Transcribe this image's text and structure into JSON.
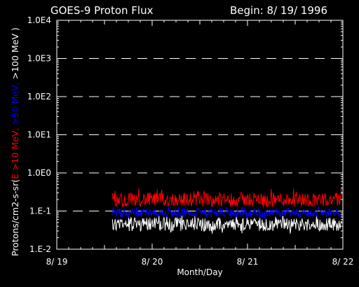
{
  "chart_data": {
    "type": "line",
    "title": "GOES-9 Proton Flux",
    "subtitle": "Begin: 8/ 19/ 1996",
    "xlabel": "Month/Day",
    "ylabel_parts": [
      "Protons/cm2-s-sr(",
      "E >10 MeV, ",
      ">50 MeV, ",
      ">100 MeV )"
    ],
    "yscale": "log",
    "ylim": [
      0.01,
      10000
    ],
    "y_ticks": [
      {
        "value": 0.01,
        "label": "1.E-2"
      },
      {
        "value": 0.1,
        "label": "1.E-1"
      },
      {
        "value": 1,
        "label": "1.0E0"
      },
      {
        "value": 10,
        "label": "1.0E1"
      },
      {
        "value": 100,
        "label": "1.0E2"
      },
      {
        "value": 1000,
        "label": "1.0E3"
      },
      {
        "value": 10000,
        "label": "1.0E4"
      }
    ],
    "xlim": [
      "1996-08-19",
      "1996-08-22"
    ],
    "x_ticks": [
      {
        "value": "1996-08-19",
        "label": "8/ 19"
      },
      {
        "value": "1996-08-20",
        "label": "8/ 20"
      },
      {
        "value": "1996-08-21",
        "label": "8/ 21"
      },
      {
        "value": "1996-08-22",
        "label": "8/ 22"
      }
    ],
    "grid": "dashed horizontal at each decade",
    "data_start": "1996-08-19T14:00",
    "series": [
      {
        "label": "E >10 MeV",
        "color": "#ff0000",
        "typical": 0.2,
        "range": [
          0.12,
          0.4
        ]
      },
      {
        "label": ">50 MeV",
        "color": "#0000ff",
        "typical": 0.09,
        "range": [
          0.06,
          0.13
        ]
      },
      {
        "label": ">100 MeV",
        "color": "#ffffff",
        "typical": 0.045,
        "range": [
          0.025,
          0.08
        ]
      }
    ]
  }
}
